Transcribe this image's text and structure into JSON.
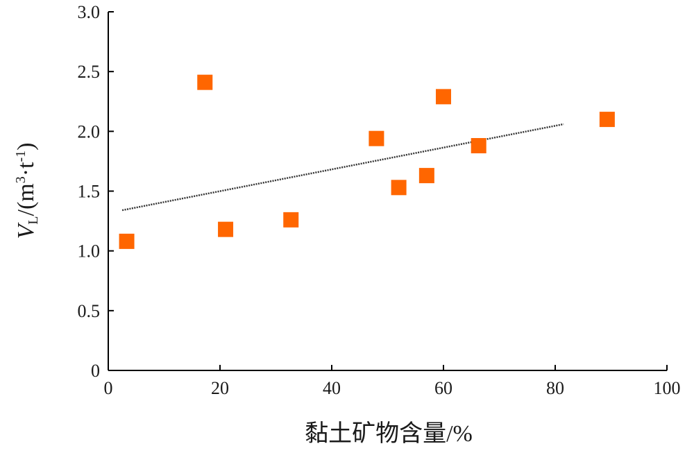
{
  "chart_data": {
    "type": "scatter",
    "title": "",
    "xlabel": "黏土矿物含量/%",
    "ylabel": {
      "symbol": "V",
      "subscript": "L",
      "units_prefix": "/(m",
      "units_sup1": "3",
      "units_mid": "·t",
      "units_sup2": "-1",
      "units_suffix": ")"
    },
    "xlim": [
      0,
      100
    ],
    "ylim": [
      0,
      3.0
    ],
    "x_ticks": [
      "0",
      "20",
      "40",
      "60",
      "80",
      "100"
    ],
    "y_ticks": [
      "0",
      "0.5",
      "1.0",
      "1.5",
      "2.0",
      "2.5",
      "3.0"
    ],
    "grid": false,
    "legend": "none",
    "marker": "square",
    "marker_color": "#FF6600",
    "points": [
      {
        "x": 3.3,
        "y": 1.08
      },
      {
        "x": 17.3,
        "y": 2.41
      },
      {
        "x": 21.0,
        "y": 1.18
      },
      {
        "x": 32.7,
        "y": 1.26
      },
      {
        "x": 48.0,
        "y": 1.94
      },
      {
        "x": 52.0,
        "y": 1.53
      },
      {
        "x": 57.0,
        "y": 1.63
      },
      {
        "x": 60.0,
        "y": 2.29
      },
      {
        "x": 66.3,
        "y": 1.88
      },
      {
        "x": 89.3,
        "y": 2.1
      }
    ],
    "trendline": {
      "style": "dotted",
      "color": "#333333",
      "x": [
        2.5,
        81.5
      ],
      "y": [
        1.34,
        2.06
      ]
    }
  }
}
